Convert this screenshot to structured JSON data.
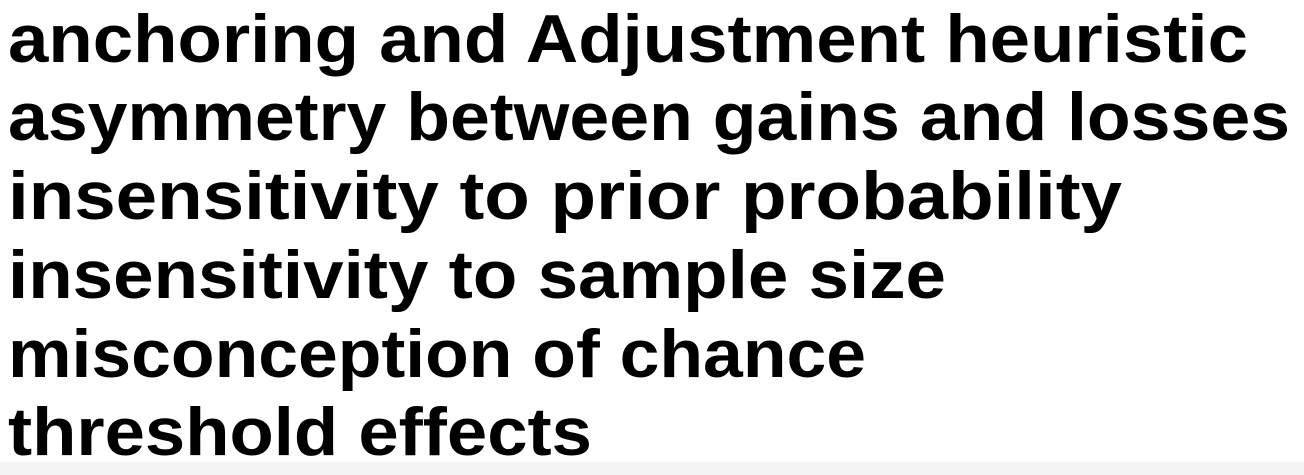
{
  "lines": [
    "anchoring and Adjustment heuristic",
    "asymmetry between gains and losses",
    "insensitivity to prior probability",
    "insensitivity to sample size",
    "misconception of chance",
    "threshold effects"
  ]
}
